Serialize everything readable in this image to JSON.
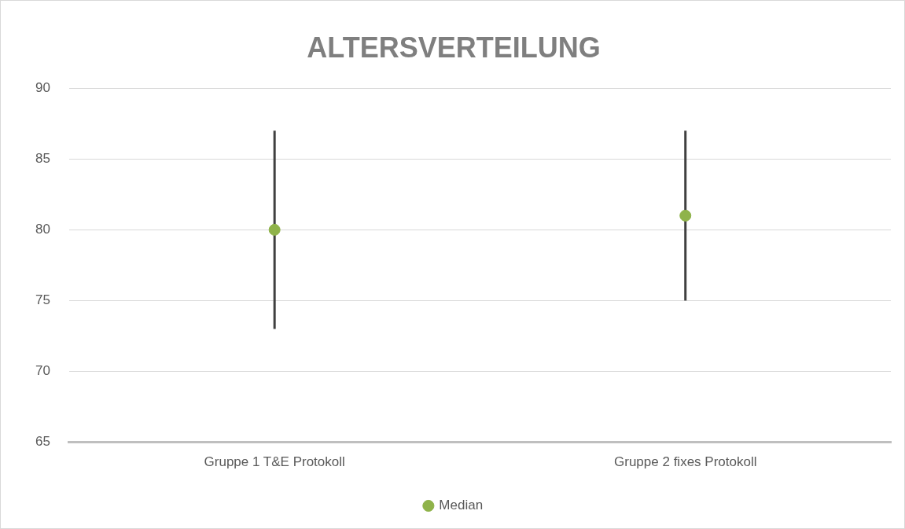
{
  "chart_data": {
    "type": "scatter",
    "title": "ALTERSVERTEILUNG",
    "categories": [
      "Gruppe 1 T&E Protokoll",
      "Gruppe 2 fixes Protokoll"
    ],
    "series": [
      {
        "name": "Median",
        "color": "#8fb34a",
        "values": [
          80,
          81
        ],
        "errors": [
          [
            73,
            87
          ],
          [
            75,
            87
          ]
        ]
      }
    ],
    "ylim": [
      65,
      90
    ],
    "yticks": [
      65,
      70,
      75,
      80,
      85,
      90
    ],
    "grid": "y",
    "legend": "bottom",
    "marker": "circle"
  }
}
